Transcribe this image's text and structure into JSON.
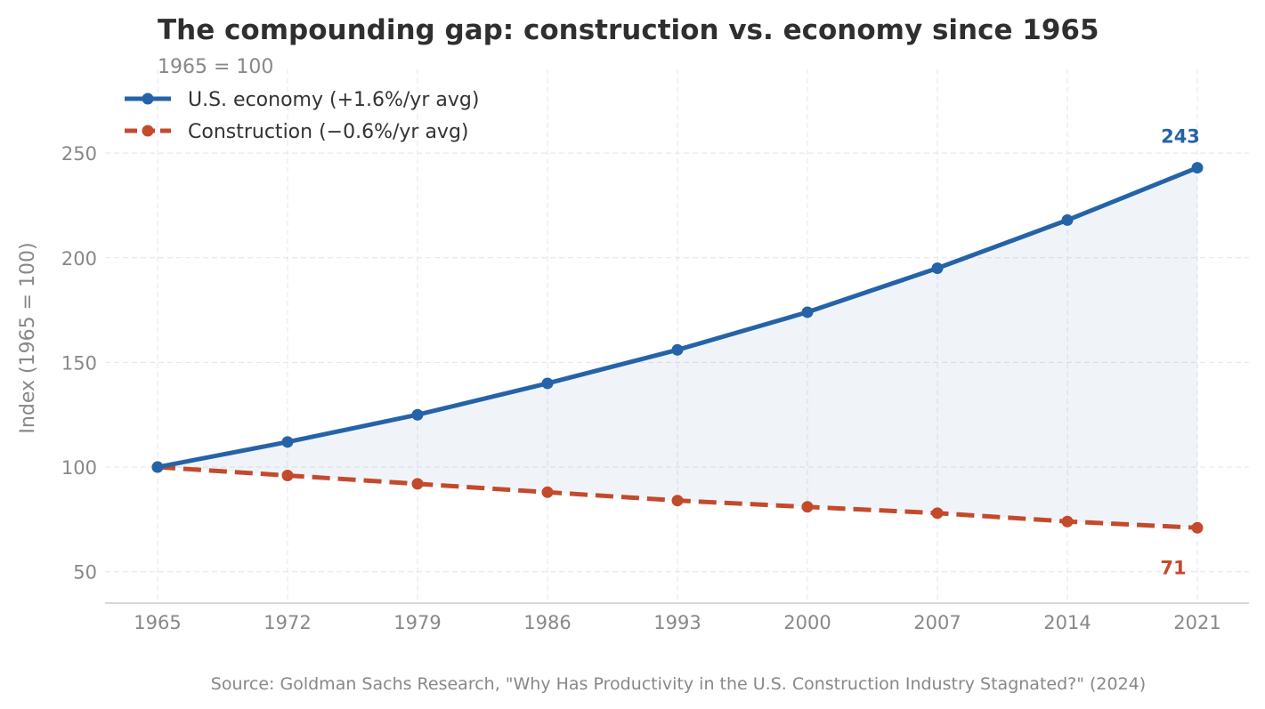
{
  "chart_data": {
    "type": "line",
    "title": "The compounding gap: construction vs. economy since 1965",
    "subtitle": "1965 = 100",
    "xlabel": "",
    "ylabel": "Index (1965 = 100)",
    "x": [
      "1965",
      "1972",
      "1979",
      "1986",
      "1993",
      "2000",
      "2007",
      "2014",
      "2021"
    ],
    "ylim": [
      35,
      290
    ],
    "yticks": [
      50,
      100,
      150,
      200,
      250
    ],
    "grid": true,
    "legend_position": "top-left",
    "series": [
      {
        "name": "U.S. economy  (+1.6%/yr avg)",
        "values": [
          100,
          112,
          125,
          140,
          156,
          174,
          195,
          218,
          243
        ],
        "color": "#2563a8",
        "style": "solid",
        "end_label": "243"
      },
      {
        "name": "Construction  (−0.6%/yr avg)",
        "values": [
          100,
          96,
          92,
          88,
          84,
          81,
          78,
          74,
          71
        ],
        "color": "#c44a2c",
        "style": "dashed",
        "end_label": "71"
      }
    ],
    "fill_between": {
      "color": "#2563a8",
      "opacity": 0.07
    },
    "source": "Source: Goldman Sachs Research, \"Why Has Productivity in the U.S. Construction Industry Stagnated?\" (2024)"
  }
}
